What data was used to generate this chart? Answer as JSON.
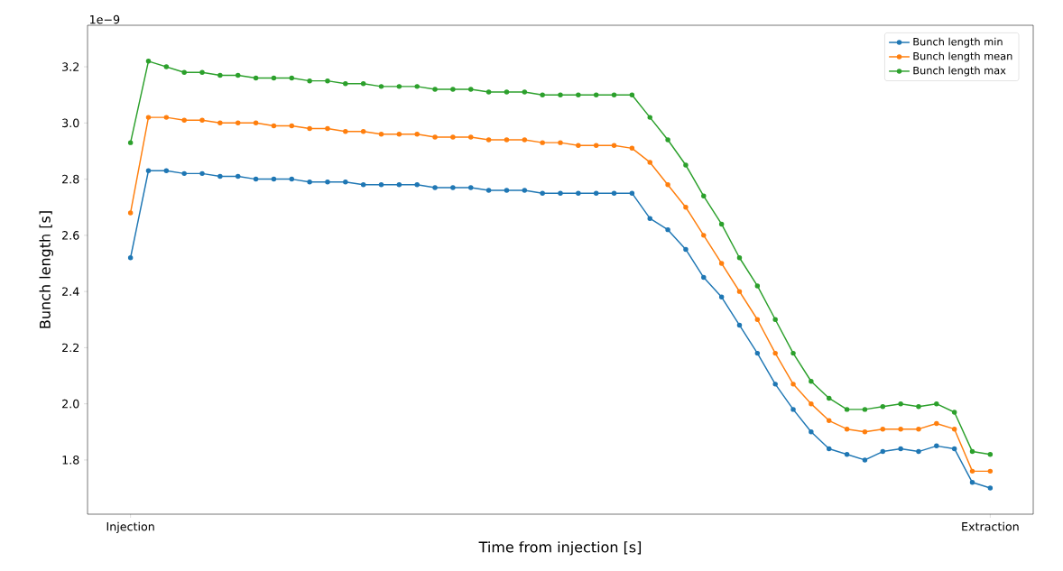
{
  "chart_data": {
    "type": "line",
    "xlabel": "Time from injection [s]",
    "ylabel": "Bunch length [s]",
    "annotations": [
      "1e−9"
    ],
    "categories": [
      "Injection",
      null,
      null,
      null,
      null,
      null,
      null,
      null,
      null,
      null,
      null,
      null,
      null,
      null,
      null,
      null,
      null,
      null,
      null,
      null,
      null,
      null,
      null,
      null,
      null,
      null,
      null,
      null,
      null,
      null,
      null,
      null,
      null,
      null,
      null,
      null,
      null,
      null,
      null,
      null,
      null,
      null,
      null,
      null,
      null,
      null,
      null,
      null,
      "Extraction"
    ],
    "series": [
      {
        "name": "Bunch length min",
        "color": "#1f77b4",
        "values": [
          2.52,
          2.83,
          2.83,
          2.82,
          2.82,
          2.81,
          2.81,
          2.8,
          2.8,
          2.8,
          2.79,
          2.79,
          2.79,
          2.78,
          2.78,
          2.78,
          2.78,
          2.77,
          2.77,
          2.77,
          2.76,
          2.76,
          2.76,
          2.75,
          2.75,
          2.75,
          2.75,
          2.75,
          2.75,
          2.66,
          2.62,
          2.55,
          2.45,
          2.38,
          2.28,
          2.18,
          2.07,
          1.98,
          1.9,
          1.84,
          1.82,
          1.8,
          1.83,
          1.84,
          1.83,
          1.85,
          1.84,
          1.72,
          1.7
        ]
      },
      {
        "name": "Bunch length mean",
        "color": "#ff7f0e",
        "values": [
          2.68,
          3.02,
          3.02,
          3.01,
          3.01,
          3.0,
          3.0,
          3.0,
          2.99,
          2.99,
          2.98,
          2.98,
          2.97,
          2.97,
          2.96,
          2.96,
          2.96,
          2.95,
          2.95,
          2.95,
          2.94,
          2.94,
          2.94,
          2.93,
          2.93,
          2.92,
          2.92,
          2.92,
          2.91,
          2.86,
          2.78,
          2.7,
          2.6,
          2.5,
          2.4,
          2.3,
          2.18,
          2.07,
          2.0,
          1.94,
          1.91,
          1.9,
          1.91,
          1.91,
          1.91,
          1.93,
          1.91,
          1.76,
          1.76
        ]
      },
      {
        "name": "Bunch length max",
        "color": "#2ca02c",
        "values": [
          2.93,
          3.22,
          3.2,
          3.18,
          3.18,
          3.17,
          3.17,
          3.16,
          3.16,
          3.16,
          3.15,
          3.15,
          3.14,
          3.14,
          3.13,
          3.13,
          3.13,
          3.12,
          3.12,
          3.12,
          3.11,
          3.11,
          3.11,
          3.1,
          3.1,
          3.1,
          3.1,
          3.1,
          3.1,
          3.02,
          2.94,
          2.85,
          2.74,
          2.64,
          2.52,
          2.42,
          2.3,
          2.18,
          2.08,
          2.02,
          1.98,
          1.98,
          1.99,
          2.0,
          1.99,
          2.0,
          1.97,
          1.83,
          1.82
        ]
      }
    ],
    "ylim": [
      1.607,
      3.348
    ],
    "yticks": [
      1.8,
      {
        "value": 2.0,
        "label": "2.0"
      },
      2.2,
      2.4,
      2.6,
      2.8,
      {
        "value": 3.0,
        "label": "3.0"
      },
      3.2
    ],
    "legend": "top right",
    "marker": "circle",
    "line_style": "solid",
    "grid": false
  }
}
